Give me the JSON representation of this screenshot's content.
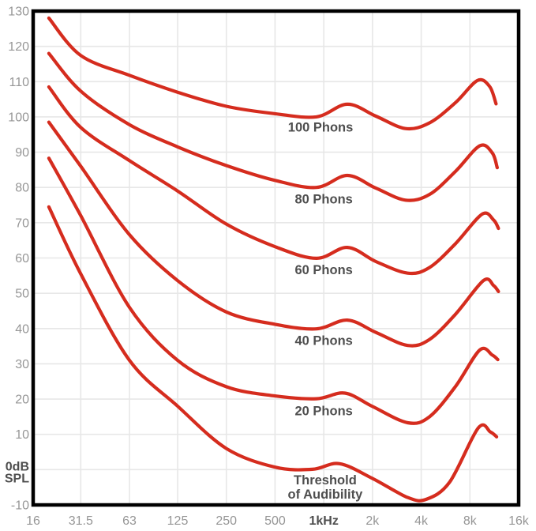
{
  "chart_data": {
    "type": "line",
    "description_labels": {
      "y_unit_label_line1": "0dB",
      "y_unit_label_line2": "SPL"
    },
    "colors": {
      "curve": "#d52c1e",
      "grid": "#e7e7e7",
      "border": "#000000",
      "tick_text": "#969696",
      "bold_text": "#4e4e4e",
      "background": "#ffffff"
    },
    "grid": true,
    "legend": "inline-curve-labels",
    "x_axis": {
      "scale": "log",
      "unit": "Hz",
      "min": 16,
      "max": 16000,
      "ticks": [
        {
          "value": 16,
          "label": "16",
          "bold": false
        },
        {
          "value": 31.5,
          "label": "31.5",
          "bold": false
        },
        {
          "value": 63,
          "label": "63",
          "bold": false
        },
        {
          "value": 125,
          "label": "125",
          "bold": false
        },
        {
          "value": 250,
          "label": "250",
          "bold": false
        },
        {
          "value": 500,
          "label": "500",
          "bold": false
        },
        {
          "value": 1000,
          "label": "1kHz",
          "bold": true
        },
        {
          "value": 2000,
          "label": "2k",
          "bold": false
        },
        {
          "value": 4000,
          "label": "4k",
          "bold": false
        },
        {
          "value": 8000,
          "label": "8k",
          "bold": false
        },
        {
          "value": 16000,
          "label": "16k",
          "bold": false
        }
      ]
    },
    "y_axis": {
      "unit": "dB SPL",
      "min": -10,
      "max": 130,
      "step": 10,
      "ticks": [
        {
          "value": 130,
          "label": "130",
          "bold": false
        },
        {
          "value": 120,
          "label": "120",
          "bold": false
        },
        {
          "value": 110,
          "label": "110",
          "bold": false
        },
        {
          "value": 100,
          "label": "100",
          "bold": false
        },
        {
          "value": 90,
          "label": "90",
          "bold": false
        },
        {
          "value": 80,
          "label": "80",
          "bold": false
        },
        {
          "value": 70,
          "label": "70",
          "bold": false
        },
        {
          "value": 60,
          "label": "60",
          "bold": false
        },
        {
          "value": 50,
          "label": "50",
          "bold": false
        },
        {
          "value": 40,
          "label": "40",
          "bold": false
        },
        {
          "value": 30,
          "label": "30",
          "bold": false
        },
        {
          "value": 20,
          "label": "20",
          "bold": false
        },
        {
          "value": 10,
          "label": "10",
          "bold": false
        },
        {
          "value": 0,
          "label": "0dB",
          "label2": "SPL",
          "bold": true
        },
        {
          "value": -10,
          "label": "-10",
          "bold": false
        }
      ]
    },
    "series": [
      {
        "name": "100 Phons",
        "label_lines": [
          "100 Phons"
        ],
        "label_freq": 955,
        "label_db": 95.8,
        "points": [
          [
            20,
            128
          ],
          [
            31.5,
            117.4
          ],
          [
            63,
            111.8
          ],
          [
            125,
            107
          ],
          [
            250,
            103
          ],
          [
            500,
            100.9
          ],
          [
            900,
            100
          ],
          [
            1400,
            103.6
          ],
          [
            2100,
            100.2
          ],
          [
            3200,
            96.7
          ],
          [
            4500,
            98.3
          ],
          [
            6500,
            104
          ],
          [
            8900,
            110.3
          ],
          [
            10600,
            108.6
          ],
          [
            11600,
            103.7
          ]
        ]
      },
      {
        "name": "80 Phons",
        "label_lines": [
          "80 Phons"
        ],
        "label_freq": 1000,
        "label_db": 75.5,
        "points": [
          [
            20,
            118
          ],
          [
            31.5,
            107.3
          ],
          [
            63,
            97.8
          ],
          [
            125,
            91.5
          ],
          [
            250,
            86.2
          ],
          [
            500,
            82
          ],
          [
            900,
            80
          ],
          [
            1400,
            83.4
          ],
          [
            2100,
            79.8
          ],
          [
            3200,
            76.4
          ],
          [
            4500,
            78
          ],
          [
            6500,
            84.5
          ],
          [
            9200,
            91.8
          ],
          [
            11000,
            89.8
          ],
          [
            11800,
            85.6
          ]
        ]
      },
      {
        "name": "60 Phons",
        "label_lines": [
          "60 Phons"
        ],
        "label_freq": 1000,
        "label_db": 55.4,
        "points": [
          [
            20,
            108.5
          ],
          [
            31.5,
            97
          ],
          [
            63,
            87.6
          ],
          [
            125,
            79
          ],
          [
            250,
            69.6
          ],
          [
            500,
            63.2
          ],
          [
            900,
            59.9
          ],
          [
            1400,
            63
          ],
          [
            2100,
            59
          ],
          [
            3300,
            55.7
          ],
          [
            4500,
            57.3
          ],
          [
            6500,
            64
          ],
          [
            9500,
            72.4
          ],
          [
            11200,
            70.8
          ],
          [
            12000,
            68.4
          ]
        ]
      },
      {
        "name": "40 Phons",
        "label_lines": [
          "40 Phons"
        ],
        "label_freq": 1000,
        "label_db": 35.4,
        "points": [
          [
            20,
            98.5
          ],
          [
            31.5,
            86
          ],
          [
            63,
            66.6
          ],
          [
            125,
            53.6
          ],
          [
            250,
            44.7
          ],
          [
            500,
            41.2
          ],
          [
            900,
            39.9
          ],
          [
            1400,
            42.4
          ],
          [
            2100,
            38.9
          ],
          [
            3300,
            35.2
          ],
          [
            4500,
            36.9
          ],
          [
            6500,
            44
          ],
          [
            9700,
            53.6
          ],
          [
            11200,
            52.2
          ],
          [
            12000,
            50.5
          ]
        ]
      },
      {
        "name": "20 Phons",
        "label_lines": [
          "20 Phons"
        ],
        "label_freq": 1000,
        "label_db": 15.4,
        "points": [
          [
            20,
            88.3
          ],
          [
            31.5,
            72
          ],
          [
            63,
            46
          ],
          [
            125,
            31
          ],
          [
            250,
            23.5
          ],
          [
            500,
            20.9
          ],
          [
            900,
            20.1
          ],
          [
            1350,
            21.7
          ],
          [
            2000,
            17.9
          ],
          [
            3300,
            13.3
          ],
          [
            4500,
            15
          ],
          [
            6500,
            23.5
          ],
          [
            9200,
            33.9
          ],
          [
            11000,
            32.5
          ],
          [
            11900,
            31.2
          ]
        ]
      },
      {
        "name": "Threshold of Audibility",
        "label_lines": [
          "Threshold",
          "of Audibility"
        ],
        "label_freq": 1020,
        "label_db": -4.2,
        "points": [
          [
            20,
            74.5
          ],
          [
            31.5,
            55.5
          ],
          [
            63,
            31
          ],
          [
            125,
            18
          ],
          [
            250,
            6
          ],
          [
            500,
            0.7
          ],
          [
            850,
            0.1
          ],
          [
            1250,
            1.7
          ],
          [
            2000,
            -2.5
          ],
          [
            3300,
            -7.9
          ],
          [
            4300,
            -8.4
          ],
          [
            6000,
            -3.5
          ],
          [
            9000,
            11.8
          ],
          [
            10700,
            10.7
          ],
          [
            11700,
            9.3
          ]
        ]
      }
    ]
  }
}
